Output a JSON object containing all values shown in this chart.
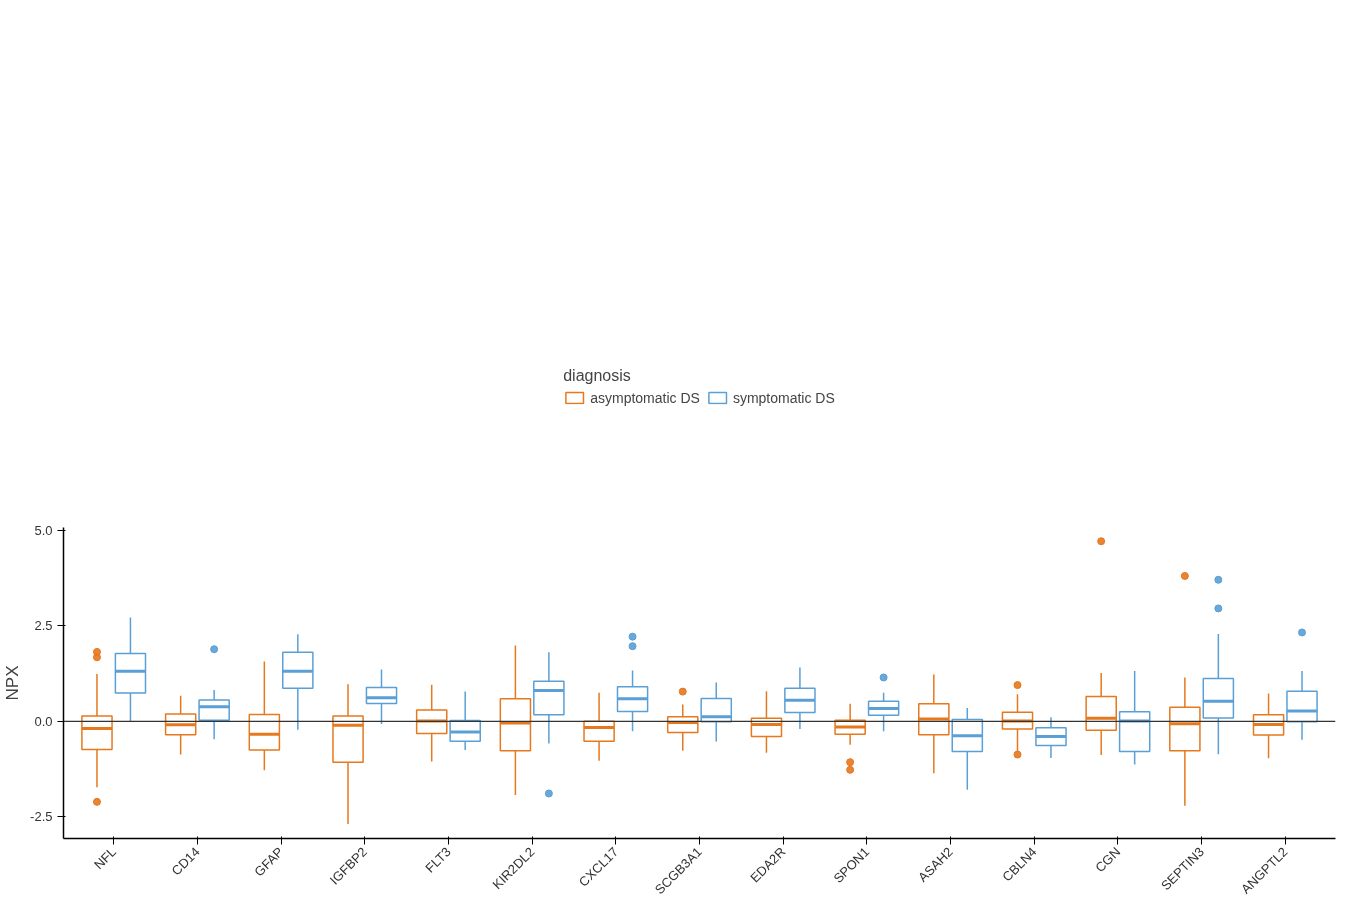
{
  "chart_data": {
    "type": "box",
    "ylabel": "NPX",
    "legend_title": "diagnosis",
    "legend": "top",
    "grid": false,
    "categories": [
      "NFL",
      "CD14",
      "GFAP",
      "IGFBP2",
      "FLT3",
      "KIR2DL2",
      "CXCL17",
      "SCGB3A1",
      "EDA2R",
      "SPON1",
      "ASAH2",
      "CBLN4",
      "CGN",
      "SEPTIN3",
      "ANGPTL2"
    ],
    "ylim": [
      -3.07,
      5.08
    ],
    "yticks": [
      {
        "value": -2.5,
        "label": "-2.5"
      },
      {
        "value": 0,
        "label": "0.0"
      },
      {
        "value": 2.5,
        "label": "2.5"
      },
      {
        "value": 5,
        "label": "5.0"
      }
    ],
    "ref_lines": [
      {
        "axis": "y",
        "value": 0,
        "color": "#333333"
      }
    ],
    "series": [
      {
        "name": "asymptomatic DS",
        "color": "#e6781e",
        "boxes": [
          {
            "low": -1.73,
            "q1": -0.74,
            "median": -0.19,
            "q3": 0.14,
            "high": 1.24,
            "outliers": [
              1.82,
              1.68,
              -2.11
            ]
          },
          {
            "low": -0.87,
            "q1": -0.35,
            "median": -0.09,
            "q3": 0.19,
            "high": 0.67
          },
          {
            "low": -1.28,
            "q1": -0.75,
            "median": -0.34,
            "q3": 0.18,
            "high": 1.57
          },
          {
            "low": -2.69,
            "q1": -1.07,
            "median": -0.1,
            "q3": 0.14,
            "high": 0.97
          },
          {
            "low": -1.05,
            "q1": -0.32,
            "median": 0.01,
            "q3": 0.3,
            "high": 0.96
          },
          {
            "low": -1.93,
            "q1": -0.77,
            "median": -0.04,
            "q3": 0.59,
            "high": 1.99
          },
          {
            "low": -1.03,
            "q1": -0.52,
            "median": -0.16,
            "q3": 0.0,
            "high": 0.75
          },
          {
            "low": -0.77,
            "q1": -0.29,
            "median": -0.03,
            "q3": 0.12,
            "high": 0.44,
            "outliers": [
              0.78
            ]
          },
          {
            "low": -0.82,
            "q1": -0.4,
            "median": -0.08,
            "q3": 0.08,
            "high": 0.79
          },
          {
            "low": -0.61,
            "q1": -0.34,
            "median": -0.15,
            "q3": 0.03,
            "high": 0.46,
            "outliers": [
              -1.07,
              -1.27
            ]
          },
          {
            "low": -1.36,
            "q1": -0.35,
            "median": 0.06,
            "q3": 0.46,
            "high": 1.23
          },
          {
            "low": -0.81,
            "q1": -0.2,
            "median": 0.01,
            "q3": 0.24,
            "high": 0.71,
            "outliers": [
              0.95,
              -0.87
            ]
          },
          {
            "low": -0.88,
            "q1": -0.23,
            "median": 0.08,
            "q3": 0.65,
            "high": 1.27,
            "outliers": [
              4.72
            ]
          },
          {
            "low": -2.21,
            "q1": -0.77,
            "median": -0.06,
            "q3": 0.37,
            "high": 1.15,
            "outliers": [
              3.81
            ]
          },
          {
            "low": -0.97,
            "q1": -0.36,
            "median": -0.08,
            "q3": 0.17,
            "high": 0.73
          }
        ]
      },
      {
        "name": "symptomatic DS",
        "color": "#5a9fd6",
        "boxes": [
          {
            "low": 0.0,
            "q1": 0.74,
            "median": 1.31,
            "q3": 1.78,
            "high": 2.72
          },
          {
            "low": -0.47,
            "q1": 0.03,
            "median": 0.38,
            "q3": 0.56,
            "high": 0.82,
            "outliers": [
              1.89
            ]
          },
          {
            "low": -0.22,
            "q1": 0.87,
            "median": 1.31,
            "q3": 1.81,
            "high": 2.28
          },
          {
            "low": -0.07,
            "q1": 0.47,
            "median": 0.62,
            "q3": 0.89,
            "high": 1.36
          },
          {
            "low": -0.75,
            "q1": -0.52,
            "median": -0.28,
            "q3": 0.02,
            "high": 0.78
          },
          {
            "low": -0.58,
            "q1": 0.17,
            "median": 0.81,
            "q3": 1.05,
            "high": 1.81,
            "outliers": [
              -1.89
            ]
          },
          {
            "low": -0.26,
            "q1": 0.26,
            "median": 0.59,
            "q3": 0.91,
            "high": 1.33,
            "outliers": [
              2.22,
              1.97
            ]
          },
          {
            "low": -0.53,
            "q1": -0.01,
            "median": 0.12,
            "q3": 0.6,
            "high": 1.02
          },
          {
            "low": -0.2,
            "q1": 0.23,
            "median": 0.55,
            "q3": 0.87,
            "high": 1.41
          },
          {
            "low": -0.26,
            "q1": 0.16,
            "median": 0.34,
            "q3": 0.53,
            "high": 0.75,
            "outliers": [
              1.15
            ]
          },
          {
            "low": -1.79,
            "q1": -0.79,
            "median": -0.38,
            "q3": 0.05,
            "high": 0.35
          },
          {
            "low": -0.96,
            "q1": -0.63,
            "median": -0.4,
            "q3": -0.17,
            "high": 0.11
          },
          {
            "low": -1.13,
            "q1": -0.79,
            "median": 0.01,
            "q3": 0.25,
            "high": 1.32
          },
          {
            "low": -0.86,
            "q1": 0.09,
            "median": 0.53,
            "q3": 1.12,
            "high": 2.29,
            "outliers": [
              3.71,
              2.96
            ]
          },
          {
            "low": -0.48,
            "q1": -0.01,
            "median": 0.27,
            "q3": 0.79,
            "high": 1.32,
            "outliers": [
              2.33
            ]
          }
        ]
      }
    ]
  }
}
